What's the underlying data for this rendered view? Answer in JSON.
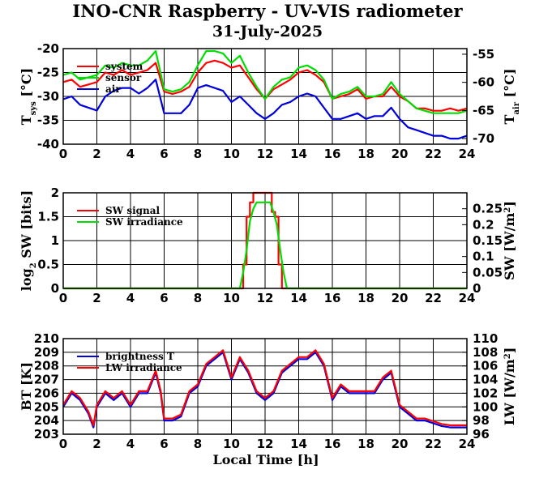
{
  "title": "INO-CNR Raspberry - UV-VIS radiometer",
  "subtitle": "31-July-2025",
  "xlabel": "Local Time [h]",
  "chart_data": [
    {
      "type": "line",
      "grid": true,
      "xlim": [
        0,
        24
      ],
      "x_ticks": [
        0,
        2,
        4,
        6,
        8,
        10,
        12,
        14,
        16,
        18,
        20,
        22,
        24
      ],
      "ylim": [
        -40,
        -20
      ],
      "y_ticks": [
        -40,
        -35,
        -30,
        -25,
        -20
      ],
      "ylabel": "T",
      "ylabel_sub": "sys",
      "ylabel_unit": " [°C]",
      "y2lim": [
        -71,
        -54
      ],
      "y2_ticks": [
        -70,
        -65,
        -60,
        -55
      ],
      "y2label": "T",
      "y2label_sub": "air",
      "y2label_unit": " [°C]",
      "legend_position": "top-left",
      "series": [
        {
          "name": "system",
          "color": "#ff0000",
          "axis": "left",
          "x": [
            0,
            0.5,
            1,
            1.5,
            2,
            2.5,
            3,
            3.5,
            4,
            4.5,
            5,
            5.5,
            6,
            6.5,
            7,
            7.5,
            8,
            8.5,
            9,
            9.5,
            10,
            10.5,
            11,
            11.5,
            12,
            12.5,
            13,
            13.5,
            14,
            14.5,
            15,
            15.5,
            16,
            16.5,
            17,
            17.5,
            18,
            18.5,
            19,
            19.5,
            20,
            20.5,
            21,
            21.5,
            22,
            22.5,
            23,
            23.5,
            24
          ],
          "y": [
            -27,
            -26.5,
            -28,
            -27.5,
            -27,
            -25,
            -25.5,
            -24.5,
            -25.5,
            -25,
            -24.5,
            -23,
            -29,
            -29.5,
            -29,
            -28,
            -25,
            -23,
            -22.5,
            -23,
            -24,
            -23.5,
            -26,
            -28.5,
            -30.5,
            -28.5,
            -27.5,
            -26.5,
            -25,
            -24.5,
            -25.5,
            -27,
            -30.5,
            -30,
            -29.5,
            -28.5,
            -30.5,
            -30,
            -30,
            -28,
            -30,
            -31,
            -32.5,
            -32.5,
            -33,
            -33,
            -32.5,
            -33,
            -32.5
          ]
        },
        {
          "name": "sensor",
          "color": "#00dd00",
          "axis": "left",
          "x": [
            0,
            0.5,
            1,
            1.5,
            2,
            2.5,
            3,
            3.5,
            4,
            4.5,
            5,
            5.5,
            6,
            6.5,
            7,
            7.5,
            8,
            8.5,
            9,
            9.5,
            10,
            10.5,
            11,
            11.5,
            12,
            12.5,
            13,
            13.5,
            14,
            14.5,
            15,
            15.5,
            16,
            16.5,
            17,
            17.5,
            18,
            18.5,
            19,
            19.5,
            20,
            20.5,
            21,
            21.5,
            22,
            22.5,
            23,
            23.5,
            24
          ],
          "y": [
            -25.5,
            -25,
            -26.5,
            -26,
            -25.5,
            -23.5,
            -24,
            -23,
            -23.5,
            -23.5,
            -22.5,
            -20.5,
            -28.5,
            -29,
            -28.5,
            -27,
            -23.5,
            -20.5,
            -20.5,
            -21,
            -23,
            -21.5,
            -25,
            -28,
            -30.5,
            -28,
            -26.5,
            -26,
            -24,
            -23.5,
            -24.5,
            -26.5,
            -30.5,
            -29.5,
            -29,
            -28,
            -30,
            -30,
            -29.5,
            -27,
            -29.5,
            -31,
            -32.5,
            -33,
            -33.5,
            -33.5,
            -33.5,
            -33.5,
            -33
          ]
        },
        {
          "name": "air",
          "color": "#0000dd",
          "axis": "right",
          "x": [
            0,
            0.5,
            1,
            1.5,
            2,
            2.5,
            3,
            3.5,
            4,
            4.5,
            5,
            5.5,
            6,
            6.5,
            7,
            7.5,
            8,
            8.5,
            9,
            9.5,
            10,
            10.5,
            11,
            11.5,
            12,
            12.5,
            13,
            13.5,
            14,
            14.5,
            15,
            15.5,
            16,
            16.5,
            17,
            17.5,
            18,
            18.5,
            19,
            19.5,
            20,
            20.5,
            21,
            21.5,
            22,
            22.5,
            23,
            23.5,
            24
          ],
          "y": [
            -63,
            -62.5,
            -64,
            -64.5,
            -65,
            -62.5,
            -61.5,
            -61,
            -61,
            -62,
            -61,
            -59.5,
            -65.5,
            -65.5,
            -65.5,
            -64,
            -61,
            -60.5,
            -61,
            -61.5,
            -63.5,
            -62.5,
            -64,
            -65.5,
            -66.5,
            -65.5,
            -64,
            -63.5,
            -62.5,
            -62,
            -62.5,
            -64.5,
            -66.5,
            -66.5,
            -66,
            -65.5,
            -66.5,
            -66,
            -66,
            -64.5,
            -66.5,
            -68,
            -68.5,
            -69,
            -69.5,
            -69.5,
            -70,
            -70,
            -69.5
          ]
        }
      ]
    },
    {
      "type": "line",
      "grid": true,
      "xlim": [
        0,
        24
      ],
      "x_ticks": [
        0,
        2,
        4,
        6,
        8,
        10,
        12,
        14,
        16,
        18,
        20,
        22,
        24
      ],
      "ylim": [
        0,
        2
      ],
      "y_ticks": [
        0,
        0.5,
        1,
        1.5,
        2
      ],
      "y_tick_labels": [
        "0",
        "0.5",
        "1",
        "1.5",
        "2"
      ],
      "ylabel": "log",
      "ylabel_sub": "2",
      "ylabel_unit": " SW [bits]",
      "y2lim": [
        0,
        0.3
      ],
      "y2_ticks": [
        0,
        0.05,
        0.1,
        0.15,
        0.2,
        0.25
      ],
      "y2_tick_labels": [
        "0",
        "0.05",
        "0.1",
        "0.15",
        "0.2",
        "0.25"
      ],
      "y2label": "SW [W/m",
      "y2label_sup": "2",
      "y2label_unit": "]",
      "legend_position": "top-left",
      "series": [
        {
          "name": "SW signal",
          "color": "#ff0000",
          "axis": "left",
          "x": [
            0,
            10.7,
            10.7,
            10.9,
            10.9,
            11.1,
            11.1,
            11.3,
            11.3,
            12.4,
            12.4,
            12.6,
            12.6,
            12.8,
            12.8,
            13.0,
            13.0,
            24
          ],
          "y": [
            0,
            0,
            0.5,
            0.5,
            1.5,
            1.5,
            1.8,
            1.8,
            2,
            2,
            1.6,
            1.6,
            1.5,
            1.5,
            0.5,
            0.5,
            0,
            0
          ]
        },
        {
          "name": "SW irradiance",
          "color": "#00dd00",
          "axis": "right",
          "x": [
            0,
            10.5,
            10.7,
            10.9,
            11.1,
            11.3,
            11.5,
            12.3,
            12.5,
            12.7,
            12.9,
            13.1,
            13.3,
            24
          ],
          "y": [
            0,
            0,
            0.05,
            0.12,
            0.21,
            0.25,
            0.27,
            0.27,
            0.24,
            0.2,
            0.12,
            0.05,
            0,
            0
          ]
        }
      ]
    },
    {
      "type": "line",
      "grid": true,
      "xlim": [
        0,
        24
      ],
      "x_ticks": [
        0,
        2,
        4,
        6,
        8,
        10,
        12,
        14,
        16,
        18,
        20,
        22,
        24
      ],
      "ylim": [
        203,
        210
      ],
      "y_ticks": [
        203,
        204,
        205,
        206,
        207,
        208,
        209,
        210
      ],
      "ylabel": "BT [K]",
      "y2lim": [
        96,
        110
      ],
      "y2_ticks": [
        96,
        98,
        100,
        102,
        104,
        106,
        108,
        110
      ],
      "y2label": "LW [W/m",
      "y2label_sup": "2",
      "y2label_unit": "]",
      "legend_position": "top-left",
      "series": [
        {
          "name": "brightness T",
          "color": "#0000dd",
          "axis": "left",
          "x": [
            0,
            0.5,
            1,
            1.5,
            1.8,
            2,
            2.5,
            3,
            3.5,
            4,
            4.5,
            5,
            5.5,
            5.8,
            6,
            6.5,
            7,
            7.5,
            8,
            8.5,
            9,
            9.5,
            10,
            10.5,
            11,
            11.5,
            12,
            12.5,
            13,
            13.5,
            14,
            14.5,
            15,
            15.5,
            16,
            16.5,
            17,
            17.5,
            18,
            18.5,
            19,
            19.5,
            20,
            20.5,
            21,
            21.5,
            22,
            22.5,
            23,
            23.5,
            24
          ],
          "y": [
            205,
            206,
            205.5,
            204.5,
            203.5,
            205,
            206,
            205.5,
            206,
            205,
            206,
            206,
            207.5,
            206,
            204,
            204,
            204.3,
            206,
            206.5,
            208,
            208.5,
            209,
            207,
            208.5,
            207.5,
            206,
            205.5,
            206,
            207.5,
            208,
            208.5,
            208.5,
            209,
            208,
            205.5,
            206.5,
            206,
            206,
            206,
            206,
            207,
            207.5,
            205,
            204.5,
            204,
            204,
            203.8,
            203.6,
            203.5,
            203.5,
            203.5
          ]
        },
        {
          "name": "LW irradiance",
          "color": "#ff0000",
          "axis": "right",
          "x": [
            0,
            0.5,
            1,
            1.5,
            1.8,
            2,
            2.5,
            3,
            3.5,
            4,
            4.5,
            5,
            5.5,
            5.8,
            6,
            6.5,
            7,
            7.5,
            8,
            8.5,
            9,
            9.5,
            10,
            10.5,
            11,
            11.5,
            12,
            12.5,
            13,
            13.5,
            14,
            14.5,
            15,
            15.5,
            16,
            16.5,
            17,
            17.5,
            18,
            18.5,
            19,
            19.5,
            20,
            20.5,
            21,
            21.5,
            22,
            22.5,
            23,
            23.5,
            24
          ],
          "y": [
            100.3,
            102.3,
            101.3,
            99.3,
            97.3,
            100.3,
            102.3,
            101.3,
            102.3,
            100.3,
            102.3,
            102.3,
            105.3,
            102.3,
            98.3,
            98.3,
            98.9,
            102.3,
            103.3,
            106.3,
            107.3,
            108.3,
            104.3,
            107.3,
            105.3,
            102.3,
            101.3,
            102.3,
            105.3,
            106.3,
            107.3,
            107.3,
            108.3,
            106.3,
            101.3,
            103.3,
            102.3,
            102.3,
            102.3,
            102.3,
            104.3,
            105.3,
            100.3,
            99.3,
            98.3,
            98.3,
            97.9,
            97.5,
            97.3,
            97.3,
            97.3
          ]
        }
      ]
    }
  ]
}
